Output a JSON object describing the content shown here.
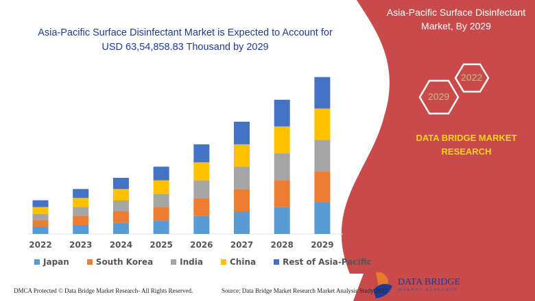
{
  "title": "Asia-Pacific Surface Disinfectant Market is Expected to Account for USD 63,54,858.83 Thousand by 2029",
  "side_panel": {
    "title": "Asia-Pacific Surface Disinfectant Market, By 2029",
    "hex_years": [
      "2022",
      "2029"
    ],
    "brand": "DATA BRIDGE MARKET RESEARCH",
    "color": "#c94a4a"
  },
  "footer": {
    "dmca": "DMCA Protected © Data Bridge Market Research- All Rights Reserved.",
    "source": "Source: Data Bridge Market Research Market Analysis Study 2022",
    "logo_text": "DATA BRIDGE",
    "logo_sub": "MARKET RESEARCH"
  },
  "chart_data": {
    "type": "bar",
    "stacked": true,
    "categories": [
      "2022",
      "2023",
      "2024",
      "2025",
      "2026",
      "2027",
      "2028",
      "2029"
    ],
    "series": [
      {
        "name": "Japan",
        "color": "#5b9bd5",
        "values": [
          10,
          13,
          16.3,
          19.7,
          26.3,
          33,
          39.3,
          46
        ]
      },
      {
        "name": "South Korea",
        "color": "#ed7d31",
        "values": [
          10,
          13.7,
          16.7,
          19.7,
          26,
          32.7,
          39.3,
          45.7
        ]
      },
      {
        "name": "India",
        "color": "#a5a5a5",
        "values": [
          9.3,
          12.7,
          16,
          19.3,
          25.7,
          32.7,
          39.3,
          45.7
        ]
      },
      {
        "name": "China",
        "color": "#ffc000",
        "values": [
          10,
          13.3,
          16.7,
          19.7,
          26.7,
          32.7,
          39.3,
          46
        ]
      },
      {
        "name": "Rest of Asia-Pacific",
        "color": "#4472c4",
        "values": [
          10,
          13,
          16.3,
          20,
          26.3,
          33,
          39,
          46
        ]
      }
    ],
    "legend": "bottom",
    "grid": false,
    "y_axis_shown": false
  }
}
